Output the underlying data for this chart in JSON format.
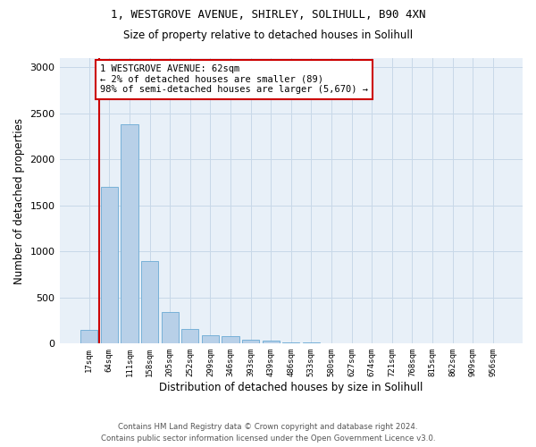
{
  "title_line1": "1, WESTGROVE AVENUE, SHIRLEY, SOLIHULL, B90 4XN",
  "title_line2": "Size of property relative to detached houses in Solihull",
  "xlabel": "Distribution of detached houses by size in Solihull",
  "ylabel": "Number of detached properties",
  "footer_line1": "Contains HM Land Registry data © Crown copyright and database right 2024.",
  "footer_line2": "Contains public sector information licensed under the Open Government Licence v3.0.",
  "bin_labels": [
    "17sqm",
    "64sqm",
    "111sqm",
    "158sqm",
    "205sqm",
    "252sqm",
    "299sqm",
    "346sqm",
    "393sqm",
    "439sqm",
    "486sqm",
    "533sqm",
    "580sqm",
    "627sqm",
    "674sqm",
    "721sqm",
    "768sqm",
    "815sqm",
    "862sqm",
    "909sqm",
    "956sqm"
  ],
  "bar_values": [
    150,
    1700,
    2380,
    900,
    340,
    160,
    90,
    80,
    45,
    30,
    15,
    10,
    5,
    0,
    0,
    0,
    0,
    0,
    0,
    0,
    0
  ],
  "bar_color": "#b8d0e8",
  "bar_edge_color": "#6aaad4",
  "grid_color": "#c8d8e8",
  "annotation_box_color": "#cc0000",
  "property_label": "1 WESTGROVE AVENUE: 62sqm",
  "annotation_line1": "← 2% of detached houses are smaller (89)",
  "annotation_line2": "98% of semi-detached houses are larger (5,670) →",
  "vline_x": 0.5,
  "ylim": [
    0,
    3100
  ],
  "yticks": [
    0,
    500,
    1000,
    1500,
    2000,
    2500,
    3000
  ],
  "background_color": "#e8f0f8"
}
